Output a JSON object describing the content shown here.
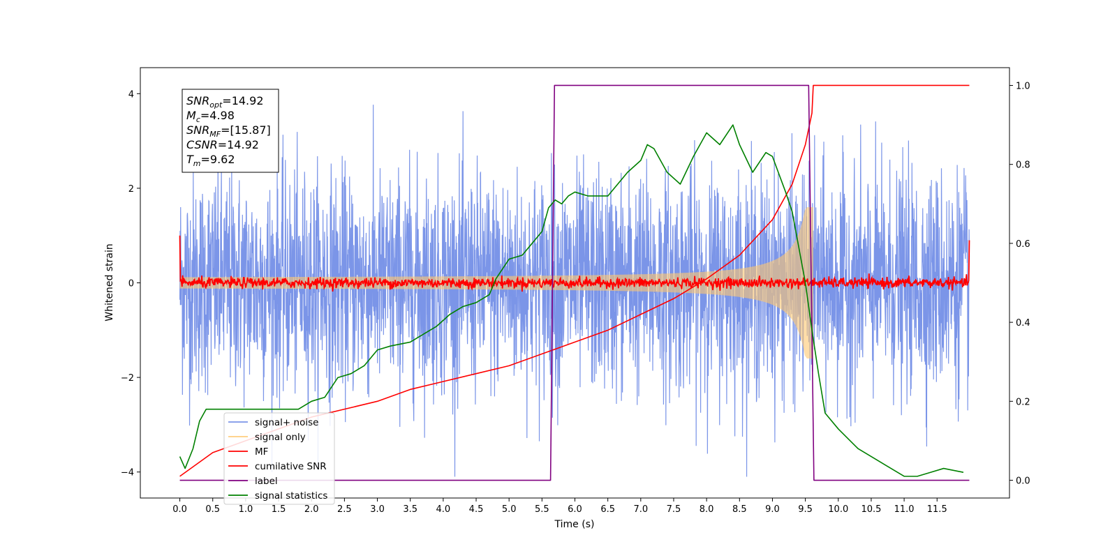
{
  "chart_data": {
    "type": "line",
    "title": "",
    "xlabel": "Time (s)",
    "ylabel_left": "Whitened strain",
    "ylabel_right": "",
    "xlim": [
      -0.6,
      12.6
    ],
    "ylim_left": [
      -4.55,
      4.55
    ],
    "ylim_right": [
      -0.045,
      1.045
    ],
    "x_ticks": [
      "0.0",
      "0.5",
      "1.0",
      "1.5",
      "2.0",
      "2.5",
      "3.0",
      "3.5",
      "4.0",
      "4.5",
      "5.0",
      "5.5",
      "6.0",
      "6.5",
      "7.0",
      "7.5",
      "8.0",
      "8.5",
      "9.0",
      "9.5",
      "10.0",
      "10.5",
      "11.0",
      "11.5"
    ],
    "y_ticks_left": [
      "4",
      "2",
      "0",
      "−2",
      "−4"
    ],
    "y_ticks_right": [
      "1.0",
      "0.8",
      "0.6",
      "0.4",
      "0.2",
      "0.0"
    ],
    "grid": false,
    "legend_position": "bottom-left",
    "info_box": [
      {
        "sym": "SNR",
        "sub": "opt",
        "val": "=14.92"
      },
      {
        "sym": "M",
        "sub": "c",
        "val": "=4.98"
      },
      {
        "sym": "SNR",
        "sub": "MF",
        "val": "=[15.87]"
      },
      {
        "sym": "CSNR",
        "sub": "",
        "val": "=14.92"
      },
      {
        "sym": "T",
        "sub": "m",
        "val": "=9.62"
      }
    ],
    "series": [
      {
        "name": "signal+ noise",
        "color": "#7b95e8",
        "axis": "left",
        "style": "noise",
        "x_range": [
          0.0,
          11.99
        ],
        "amplitude": 4.1,
        "description_only": true
      },
      {
        "name": "signal only",
        "color": "#ffc870",
        "axis": "left",
        "style": "chirp",
        "x_range": [
          0.0,
          9.62
        ],
        "end_amplitude": 1.6
      },
      {
        "name": "MF",
        "color": "#ff0000",
        "axis": "left",
        "style": "noise",
        "x_range": [
          0.0,
          11.99
        ],
        "amplitude": 0.2
      },
      {
        "name": "cumilative SNR",
        "color": "#ff0000",
        "axis": "right",
        "x": [
          0.0,
          0.5,
          1.0,
          1.5,
          2.0,
          2.5,
          3.0,
          3.5,
          4.0,
          4.5,
          5.0,
          5.5,
          6.0,
          6.5,
          7.0,
          7.5,
          8.0,
          8.5,
          9.0,
          9.3,
          9.5,
          9.6,
          9.62,
          11.99
        ],
        "y": [
          0.01,
          0.07,
          0.1,
          0.13,
          0.16,
          0.18,
          0.2,
          0.23,
          0.25,
          0.27,
          0.29,
          0.32,
          0.35,
          0.38,
          0.42,
          0.46,
          0.51,
          0.57,
          0.66,
          0.75,
          0.85,
          0.93,
          1.0,
          1.0
        ]
      },
      {
        "name": "label",
        "color": "#800080",
        "axis": "right",
        "x": [
          0.0,
          5.63,
          5.69,
          9.55,
          9.63,
          11.99
        ],
        "y": [
          0.0,
          0.0,
          1.0,
          1.0,
          0.0,
          0.0
        ]
      },
      {
        "name": "signal statistics",
        "color": "#008000",
        "axis": "right",
        "x": [
          0.0,
          0.08,
          0.2,
          0.3,
          0.4,
          0.5,
          0.6,
          0.8,
          1.0,
          1.2,
          1.5,
          1.8,
          2.0,
          2.2,
          2.4,
          2.6,
          2.8,
          3.0,
          3.2,
          3.5,
          3.7,
          3.9,
          4.1,
          4.3,
          4.5,
          4.7,
          4.8,
          5.0,
          5.2,
          5.3,
          5.5,
          5.6,
          5.7,
          5.8,
          5.9,
          6.0,
          6.2,
          6.5,
          6.8,
          7.0,
          7.1,
          7.2,
          7.4,
          7.6,
          7.8,
          8.0,
          8.2,
          8.4,
          8.5,
          8.7,
          8.9,
          9.0,
          9.2,
          9.3,
          9.5,
          9.6,
          9.7,
          9.8,
          10.0,
          10.3,
          10.6,
          10.9,
          11.0,
          11.2,
          11.4,
          11.6,
          11.9
        ],
        "y": [
          0.06,
          0.03,
          0.08,
          0.15,
          0.18,
          0.18,
          0.18,
          0.18,
          0.18,
          0.18,
          0.18,
          0.18,
          0.2,
          0.21,
          0.26,
          0.27,
          0.29,
          0.33,
          0.34,
          0.35,
          0.37,
          0.39,
          0.42,
          0.44,
          0.45,
          0.47,
          0.51,
          0.56,
          0.57,
          0.59,
          0.63,
          0.69,
          0.71,
          0.7,
          0.72,
          0.73,
          0.72,
          0.72,
          0.78,
          0.81,
          0.85,
          0.84,
          0.78,
          0.75,
          0.82,
          0.88,
          0.85,
          0.9,
          0.85,
          0.78,
          0.83,
          0.82,
          0.73,
          0.68,
          0.5,
          0.38,
          0.27,
          0.17,
          0.13,
          0.08,
          0.05,
          0.02,
          0.01,
          0.01,
          0.02,
          0.03,
          0.02
        ]
      }
    ]
  }
}
